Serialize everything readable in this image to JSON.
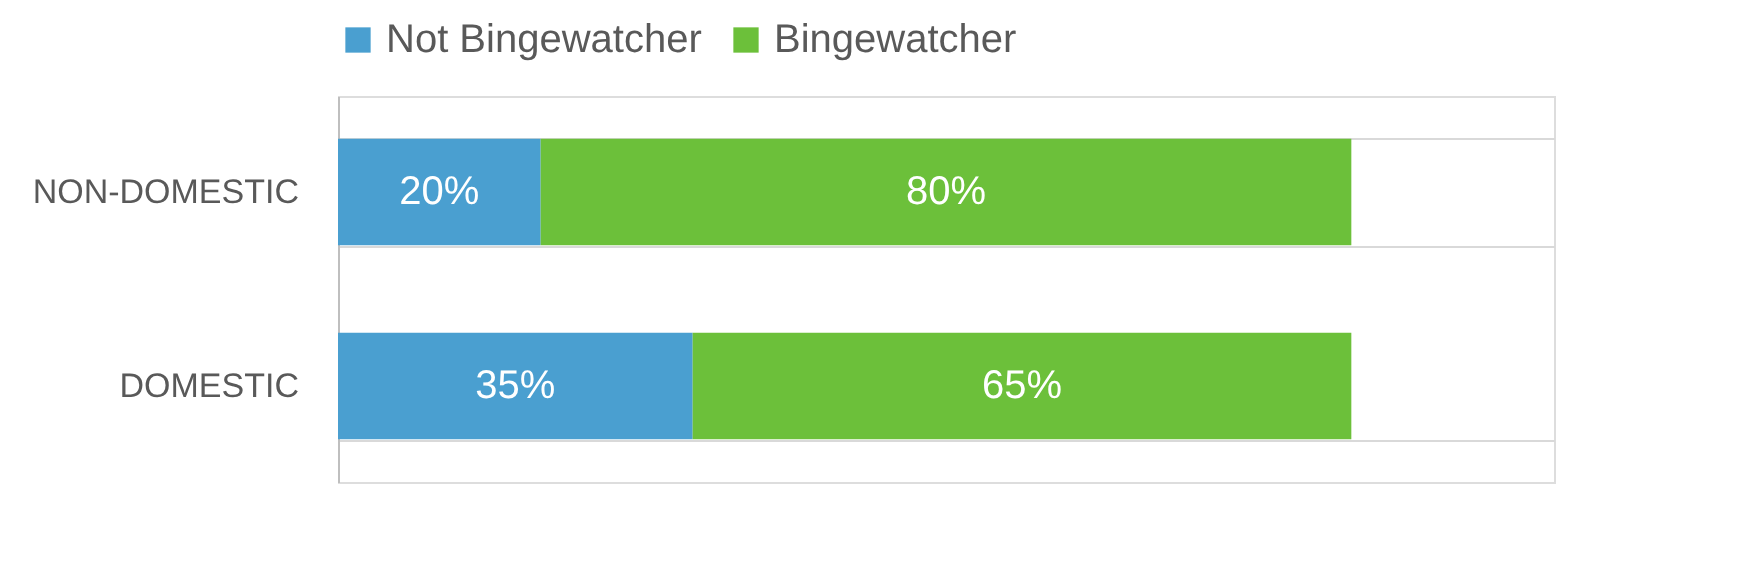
{
  "chart_data": {
    "type": "bar",
    "orientation": "horizontal",
    "stacked": true,
    "categories": [
      "NON-DOMESTIC",
      "DOMESTIC"
    ],
    "series": [
      {
        "name": "Not Bingewatcher",
        "color": "#4a9fd0",
        "values": [
          20,
          35
        ],
        "value_labels": [
          "20%",
          "35%"
        ]
      },
      {
        "name": "Bingewatcher",
        "color": "#6cc03a",
        "values": [
          80,
          65
        ],
        "value_labels": [
          "80%",
          "65%"
        ]
      }
    ],
    "xlim": [
      0,
      120
    ],
    "tick_labels": "y",
    "grid": "y",
    "legend": "top"
  }
}
